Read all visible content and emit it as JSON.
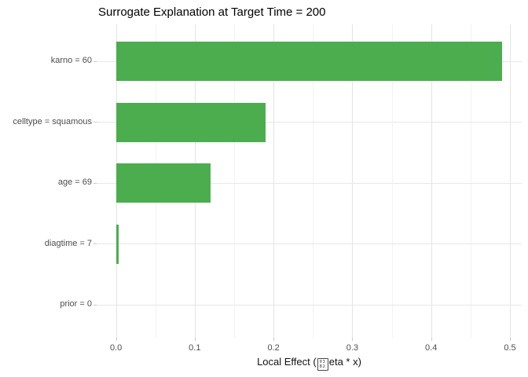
{
  "title": "Surrogate Explanation at Target Time = 200",
  "chart_data": {
    "type": "bar",
    "orientation": "horizontal",
    "title": "Surrogate Explanation at Target Time = 200",
    "categories": [
      "karno = 60",
      "celltype = squamous",
      "age = 69",
      "diagtime = 7",
      "prior = 0"
    ],
    "values": [
      0.49,
      0.19,
      0.12,
      0.003,
      0
    ],
    "xlabel": "Local Effect (βeta * x)",
    "xlabel_parts": {
      "prefix": "Local Effect (",
      "suffix": "eta * x)"
    },
    "missing_glyph": {
      "name": "beta-tofu-box",
      "hex_row_top": "03",
      "hex_row_bottom": "B2"
    },
    "x_ticks": [
      0.0,
      0.1,
      0.2,
      0.3,
      0.4,
      0.5
    ],
    "x_tick_labels": [
      "0.0",
      "0.1",
      "0.2",
      "0.3",
      "0.4",
      "0.5"
    ],
    "x_minor_ticks": [
      0.05,
      0.15,
      0.25,
      0.35,
      0.45
    ],
    "xlim": [
      -0.0245,
      0.515
    ],
    "grid": true,
    "legend": false,
    "bar_color": "#4bad4e",
    "grid_major_color": "#e4e4e4",
    "grid_minor_color": "#f2f2f2"
  }
}
